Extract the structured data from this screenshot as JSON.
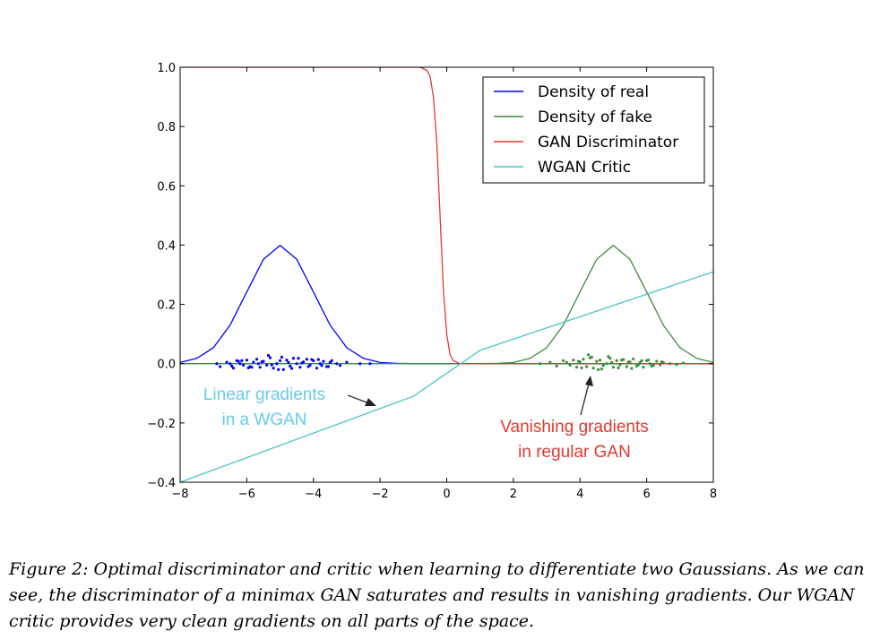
{
  "chart_data": {
    "type": "line",
    "xlim": [
      -8,
      8
    ],
    "ylim": [
      -0.4,
      1.0
    ],
    "xticks": [
      -8,
      -6,
      -4,
      -2,
      0,
      2,
      4,
      6,
      8
    ],
    "xtick_labels": [
      "−8",
      "−6",
      "−4",
      "−2",
      "0",
      "2",
      "4",
      "6",
      "8"
    ],
    "yticks": [
      -0.4,
      -0.2,
      0.0,
      0.2,
      0.4,
      0.6,
      0.8,
      1.0
    ],
    "ytick_labels": [
      "−0.4",
      "−0.2",
      "0.0",
      "0.2",
      "0.4",
      "0.6",
      "0.8",
      "1.0"
    ],
    "grid": false,
    "legend_position": "top-right",
    "series": [
      {
        "name": "Density of real",
        "color": "#0000ff",
        "x": [
          -8,
          -7.5,
          -7,
          -6.5,
          -6,
          -5.5,
          -5,
          -4.5,
          -4,
          -3.5,
          -3,
          -2.5,
          -2,
          -1.5,
          -1,
          0,
          8
        ],
        "y": [
          0.004,
          0.018,
          0.054,
          0.13,
          0.242,
          0.352,
          0.399,
          0.352,
          0.242,
          0.13,
          0.054,
          0.018,
          0.004,
          0.001,
          0.0,
          0.0,
          0.0
        ]
      },
      {
        "name": "Density of fake",
        "color": "#3c8c3c",
        "x": [
          -8,
          0,
          1,
          1.5,
          2,
          2.5,
          3,
          3.5,
          4,
          4.5,
          5,
          5.5,
          6,
          6.5,
          7,
          7.5,
          8
        ],
        "y": [
          0.0,
          0.0,
          0.0,
          0.001,
          0.004,
          0.018,
          0.054,
          0.13,
          0.242,
          0.352,
          0.399,
          0.352,
          0.242,
          0.13,
          0.054,
          0.018,
          0.004
        ]
      },
      {
        "name": "GAN Discriminator",
        "color": "#e03a2e",
        "x": [
          -8,
          -1,
          -0.8,
          -0.6,
          -0.5,
          -0.4,
          -0.3,
          -0.2,
          -0.1,
          0,
          0.1,
          0.2,
          0.4,
          0.6,
          1,
          8
        ],
        "y": [
          1.0,
          1.0,
          1.0,
          0.99,
          0.97,
          0.9,
          0.75,
          0.5,
          0.25,
          0.1,
          0.03,
          0.01,
          0.0,
          0.0,
          0.0,
          0.0
        ]
      },
      {
        "name": "WGAN Critic",
        "color": "#4cc4c4",
        "x": [
          -8,
          -1,
          1,
          8
        ],
        "y": [
          -0.4,
          -0.11,
          0.045,
          0.31
        ]
      }
    ],
    "scatter_real": {
      "color": "#0000ff",
      "x": [
        -6.9,
        -6.8,
        -6.6,
        -6.5,
        -6.4,
        -6.3,
        -6.2,
        -6.1,
        -6.0,
        -5.9,
        -5.8,
        -5.7,
        -5.6,
        -5.5,
        -5.4,
        -5.3,
        -5.2,
        -5.1,
        -5.0,
        -4.9,
        -4.8,
        -4.7,
        -4.6,
        -4.5,
        -4.4,
        -4.3,
        -4.2,
        -4.1,
        -4.0,
        -3.9,
        -3.8,
        -3.7,
        -3.6,
        -3.5,
        -3.3,
        -3.2,
        -3.0,
        -2.6,
        -2.3,
        -6.45,
        -6.15,
        -5.85,
        -5.55,
        -5.25,
        -4.95,
        -4.65,
        -4.35,
        -4.05,
        -3.75,
        -3.45,
        -5.35,
        -5.05,
        -4.75,
        -4.45,
        -4.15,
        -5.65,
        -5.95,
        -6.25,
        -3.85,
        -3.55
      ],
      "y": [
        0.0,
        -0.01,
        0.005,
        0.0,
        -0.015,
        0.01,
        0.0,
        -0.005,
        0.012,
        -0.01,
        0.005,
        0.015,
        -0.012,
        0.008,
        -0.005,
        0.02,
        -0.015,
        0.0,
        0.01,
        -0.02,
        0.012,
        -0.008,
        0.018,
        0.0,
        -0.012,
        0.006,
        0.015,
        -0.005,
        0.01,
        -0.015,
        0.0,
        0.008,
        -0.01,
        0.004,
        0.0,
        -0.006,
        0.005,
        0.0,
        0.0,
        -0.008,
        0.01,
        -0.012,
        0.006,
        -0.004,
        0.022,
        -0.016,
        0.002,
        0.014,
        -0.006,
        0.01,
        0.028,
        -0.02,
        0.004,
        0.018,
        -0.01,
        0.0,
        -0.014,
        0.008,
        0.014,
        -0.01
      ]
    },
    "scatter_fake": {
      "color": "#3c8c3c",
      "x": [
        2.8,
        3.1,
        3.3,
        3.5,
        3.7,
        3.8,
        3.9,
        4.0,
        4.1,
        4.2,
        4.3,
        4.4,
        4.5,
        4.6,
        4.7,
        4.8,
        4.9,
        5.0,
        5.1,
        5.2,
        5.3,
        5.4,
        5.5,
        5.6,
        5.7,
        5.8,
        5.9,
        6.0,
        6.1,
        6.2,
        6.3,
        6.4,
        6.5,
        6.7,
        6.9,
        7.1,
        3.6,
        4.05,
        4.35,
        4.65,
        4.95,
        5.25,
        5.55,
        5.85,
        6.15,
        6.45,
        4.25,
        4.55,
        4.85,
        5.15,
        5.45,
        5.75,
        3.95,
        6.05
      ],
      "y": [
        0.0,
        0.005,
        -0.008,
        0.01,
        -0.005,
        0.012,
        -0.012,
        0.006,
        0.015,
        -0.01,
        0.02,
        -0.015,
        0.008,
        0.012,
        -0.006,
        0.0,
        0.018,
        -0.012,
        0.01,
        -0.004,
        0.014,
        -0.01,
        0.006,
        0.016,
        -0.008,
        0.004,
        -0.012,
        0.01,
        0.0,
        -0.006,
        0.008,
        -0.004,
        0.004,
        0.0,
        -0.003,
        0.002,
        0.004,
        -0.014,
        0.022,
        -0.018,
        0.004,
        0.012,
        -0.016,
        0.01,
        -0.008,
        0.006,
        0.03,
        -0.02,
        0.024,
        -0.014,
        0.006,
        -0.004,
        0.008,
        0.012
      ]
    },
    "annotations": [
      {
        "lines": [
          "Linear gradients",
          "in a WGAN"
        ],
        "color": "#66ccee",
        "arrow_to": [
          -1.8,
          -0.13
        ]
      },
      {
        "lines": [
          "Vanishing gradients",
          "in regular GAN"
        ],
        "color": "#e03a2e",
        "arrow_to": [
          4.35,
          -0.04
        ]
      }
    ]
  },
  "caption": "Figure 2: Optimal discriminator and critic when learning to differentiate two Gaussians. As we can see, the discriminator of a minimax GAN saturates and results in vanishing gradients. Our WGAN critic provides very clean gradients on all parts of the space."
}
